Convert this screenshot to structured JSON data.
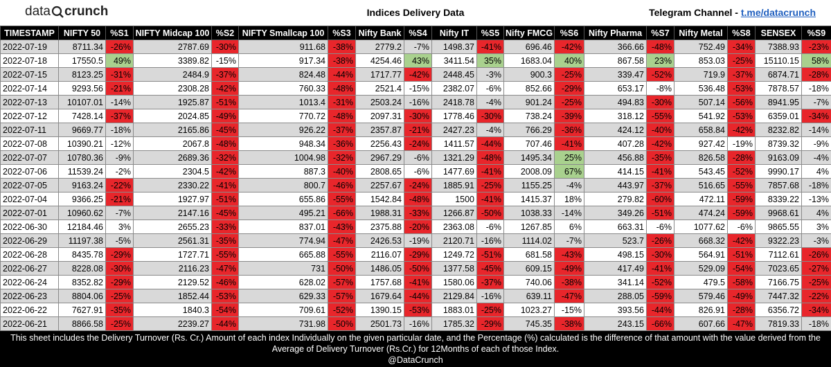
{
  "header": {
    "logo": {
      "left": "data",
      "right": "crunch"
    },
    "title": "Indices Delivery Data",
    "telegram": {
      "label": "Telegram Channel - ",
      "link": "t.me/datacrunch"
    }
  },
  "table": {
    "columns": [
      "TIMESTAMP",
      "NIFTY 50",
      "%S1",
      "NIFTY Midcap 100",
      "%S2",
      "NIFTY Smallcap 100",
      "%S3",
      "Nifty Bank",
      "%S4",
      "Nifty IT",
      "%S5",
      "Nifty FMCG",
      "%S6",
      "Nifty Pharma",
      "%S7",
      "Nifty Metal",
      "%S8",
      "SENSEX",
      "%S9"
    ],
    "rows": [
      [
        "2022-07-19",
        "8711.34",
        "-26%",
        "2787.69",
        "-30%",
        "911.68",
        "-38%",
        "2779.2",
        "-7%",
        "1498.37",
        "-41%",
        "696.46",
        "-42%",
        "366.66",
        "-48%",
        "752.49",
        "-34%",
        "7388.93",
        "-23%"
      ],
      [
        "2022-07-18",
        "17550.5",
        "49%",
        "3389.82",
        "-15%",
        "917.34",
        "-38%",
        "4254.46",
        "43%",
        "3411.54",
        "35%",
        "1683.04",
        "40%",
        "867.58",
        "23%",
        "853.03",
        "-25%",
        "15110.15",
        "58%"
      ],
      [
        "2022-07-15",
        "8123.25",
        "-31%",
        "2484.9",
        "-37%",
        "824.48",
        "-44%",
        "1717.77",
        "-42%",
        "2448.45",
        "-3%",
        "900.3",
        "-25%",
        "339.47",
        "-52%",
        "719.9",
        "-37%",
        "6874.71",
        "-28%"
      ],
      [
        "2022-07-14",
        "9293.56",
        "-21%",
        "2308.28",
        "-42%",
        "760.33",
        "-48%",
        "2521.4",
        "-15%",
        "2382.07",
        "-6%",
        "852.66",
        "-29%",
        "653.17",
        "-8%",
        "536.48",
        "-53%",
        "7878.57",
        "-18%"
      ],
      [
        "2022-07-13",
        "10107.01",
        "-14%",
        "1925.87",
        "-51%",
        "1013.4",
        "-31%",
        "2503.24",
        "-16%",
        "2418.78",
        "-4%",
        "901.24",
        "-25%",
        "494.83",
        "-30%",
        "507.14",
        "-56%",
        "8941.95",
        "-7%"
      ],
      [
        "2022-07-12",
        "7428.14",
        "-37%",
        "2024.85",
        "-49%",
        "770.72",
        "-48%",
        "2097.31",
        "-30%",
        "1778.46",
        "-30%",
        "738.24",
        "-39%",
        "318.12",
        "-55%",
        "541.92",
        "-53%",
        "6359.01",
        "-34%"
      ],
      [
        "2022-07-11",
        "9669.77",
        "-18%",
        "2165.86",
        "-45%",
        "926.22",
        "-37%",
        "2357.87",
        "-21%",
        "2427.23",
        "-4%",
        "766.29",
        "-36%",
        "424.12",
        "-40%",
        "658.84",
        "-42%",
        "8232.82",
        "-14%"
      ],
      [
        "2022-07-08",
        "10390.21",
        "-12%",
        "2067.8",
        "-48%",
        "948.34",
        "-36%",
        "2256.43",
        "-24%",
        "1411.57",
        "-44%",
        "707.46",
        "-41%",
        "407.28",
        "-42%",
        "927.42",
        "-19%",
        "8739.32",
        "-9%"
      ],
      [
        "2022-07-07",
        "10780.36",
        "-9%",
        "2689.36",
        "-32%",
        "1004.98",
        "-32%",
        "2967.29",
        "-6%",
        "1321.29",
        "-48%",
        "1495.34",
        "25%",
        "456.88",
        "-35%",
        "826.58",
        "-28%",
        "9163.09",
        "-4%"
      ],
      [
        "2022-07-06",
        "11539.24",
        "-2%",
        "2304.5",
        "-42%",
        "887.3",
        "-40%",
        "2808.65",
        "-6%",
        "1477.69",
        "-41%",
        "2008.09",
        "67%",
        "414.15",
        "-41%",
        "543.45",
        "-52%",
        "9990.17",
        "4%"
      ],
      [
        "2022-07-05",
        "9163.24",
        "-22%",
        "2330.22",
        "-41%",
        "800.7",
        "-46%",
        "2257.67",
        "-24%",
        "1885.91",
        "-25%",
        "1155.25",
        "-4%",
        "443.97",
        "-37%",
        "516.65",
        "-55%",
        "7857.68",
        "-18%"
      ],
      [
        "2022-07-04",
        "9366.25",
        "-21%",
        "1927.97",
        "-51%",
        "655.86",
        "-55%",
        "1542.84",
        "-48%",
        "1500",
        "-41%",
        "1415.37",
        "18%",
        "279.82",
        "-60%",
        "472.11",
        "-59%",
        "8339.22",
        "-13%"
      ],
      [
        "2022-07-01",
        "10960.62",
        "-7%",
        "2147.16",
        "-45%",
        "495.21",
        "-66%",
        "1988.31",
        "-33%",
        "1266.87",
        "-50%",
        "1038.33",
        "-14%",
        "349.26",
        "-51%",
        "474.24",
        "-59%",
        "9968.61",
        "4%"
      ],
      [
        "2022-06-30",
        "12184.46",
        "3%",
        "2655.23",
        "-33%",
        "837.01",
        "-43%",
        "2375.88",
        "-20%",
        "2363.08",
        "-6%",
        "1267.85",
        "6%",
        "663.31",
        "-6%",
        "1077.62",
        "-6%",
        "9865.55",
        "3%"
      ],
      [
        "2022-06-29",
        "11197.38",
        "-5%",
        "2561.31",
        "-35%",
        "774.94",
        "-47%",
        "2426.53",
        "-19%",
        "2120.71",
        "-16%",
        "1114.02",
        "-7%",
        "523.7",
        "-26%",
        "668.32",
        "-42%",
        "9322.23",
        "-3%"
      ],
      [
        "2022-06-28",
        "8435.78",
        "-29%",
        "1727.71",
        "-55%",
        "665.88",
        "-55%",
        "2116.07",
        "-29%",
        "1249.72",
        "-51%",
        "681.58",
        "-43%",
        "498.15",
        "-30%",
        "564.91",
        "-51%",
        "7112.61",
        "-26%"
      ],
      [
        "2022-06-27",
        "8228.08",
        "-30%",
        "2116.23",
        "-47%",
        "731",
        "-50%",
        "1486.05",
        "-50%",
        "1377.58",
        "-45%",
        "609.15",
        "-49%",
        "417.49",
        "-41%",
        "529.09",
        "-54%",
        "7023.65",
        "-27%"
      ],
      [
        "2022-06-24",
        "8352.82",
        "-29%",
        "2129.52",
        "-46%",
        "628.02",
        "-57%",
        "1757.68",
        "-41%",
        "1580.06",
        "-37%",
        "740.06",
        "-38%",
        "341.14",
        "-52%",
        "479.5",
        "-58%",
        "7166.75",
        "-25%"
      ],
      [
        "2022-06-23",
        "8804.06",
        "-25%",
        "1852.44",
        "-53%",
        "629.33",
        "-57%",
        "1679.64",
        "-44%",
        "2129.84",
        "-16%",
        "639.11",
        "-47%",
        "288.05",
        "-59%",
        "579.46",
        "-49%",
        "7447.32",
        "-22%"
      ],
      [
        "2022-06-22",
        "7627.91",
        "-35%",
        "1840.3",
        "-54%",
        "709.61",
        "-52%",
        "1390.15",
        "-53%",
        "1883.01",
        "-25%",
        "1023.27",
        "-15%",
        "393.56",
        "-44%",
        "826.91",
        "-28%",
        "6356.72",
        "-34%"
      ],
      [
        "2022-06-21",
        "8866.58",
        "-25%",
        "2239.27",
        "-44%",
        "731.98",
        "-50%",
        "2501.73",
        "-16%",
        "1785.32",
        "-29%",
        "745.35",
        "-38%",
        "243.15",
        "-66%",
        "607.66",
        "-47%",
        "7819.33",
        "-18%"
      ]
    ]
  },
  "footer": {
    "note": "This sheet includes the Delivery Turnover (Rs. Cr.)  Amount of each index Individually on the given particular date, and the Percentage (%) calculated is the difference of that amount with the value derived from the Average of Delivery Turnover (Rs.Cr.) for 12Months of each of those Index.",
    "handle": "@DataCrunch"
  }
}
